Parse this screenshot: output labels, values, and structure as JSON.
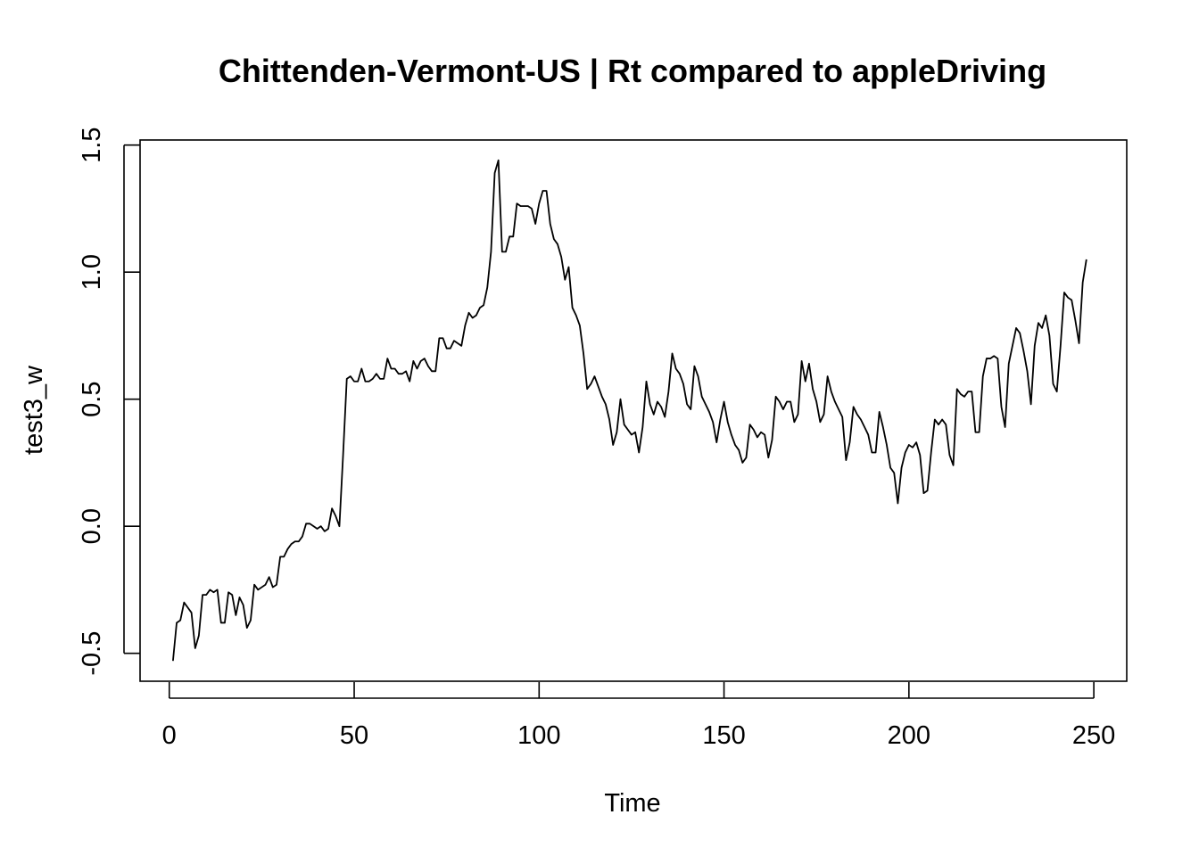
{
  "chart_data": {
    "type": "line",
    "title": "Chittenden-Vermont-US | Rt compared to appleDriving",
    "xlabel": "Time",
    "ylabel": "test3_w",
    "xlim": [
      -7.9,
      258.9
    ],
    "ylim": [
      -0.61,
      1.52
    ],
    "xticks": [
      0,
      50,
      100,
      150,
      200,
      250
    ],
    "yticks": [
      -0.5,
      0.0,
      0.5,
      1.0,
      1.5
    ],
    "xtick_labels": [
      "0",
      "50",
      "100",
      "150",
      "200",
      "250"
    ],
    "ytick_labels": [
      "-0.5",
      "0.0",
      "0.5",
      "1.0",
      "1.5"
    ],
    "grid": false,
    "line_color": "#000000",
    "series": [
      {
        "x": [
          1,
          2,
          3,
          4,
          5,
          6,
          7,
          8,
          9,
          10,
          11,
          12,
          13,
          14,
          15,
          16,
          17,
          18,
          19,
          20,
          21,
          22,
          23,
          24,
          25,
          26,
          27,
          28,
          29,
          30,
          31,
          32,
          33,
          34,
          35,
          36,
          37,
          38,
          39,
          40,
          41,
          42,
          43,
          44,
          45,
          46,
          47,
          48,
          49,
          50,
          51,
          52,
          53,
          54,
          55,
          56,
          57,
          58,
          59,
          60,
          61,
          62,
          63,
          64,
          65,
          66,
          67,
          68,
          69,
          70,
          71,
          72,
          73,
          74,
          75,
          76,
          77,
          78,
          79,
          80,
          81,
          82,
          83,
          84,
          85,
          86,
          87,
          88,
          89,
          90,
          91,
          92,
          93,
          94,
          95,
          96,
          97,
          98,
          99,
          100,
          101,
          102,
          103,
          104,
          105,
          106,
          107,
          108,
          109,
          110,
          111,
          112,
          113,
          114,
          115,
          116,
          117,
          118,
          119,
          120,
          121,
          122,
          123,
          124,
          125,
          126,
          127,
          128,
          129,
          130,
          131,
          132,
          133,
          134,
          135,
          136,
          137,
          138,
          139,
          140,
          141,
          142,
          143,
          144,
          145,
          146,
          147,
          148,
          149,
          150,
          151,
          152,
          153,
          154,
          155,
          156,
          157,
          158,
          159,
          160,
          161,
          162,
          163,
          164,
          165,
          166,
          167,
          168,
          169,
          170,
          171,
          172,
          173,
          174,
          175,
          176,
          177,
          178,
          179,
          180,
          181,
          182,
          183,
          184,
          185,
          186,
          187,
          188,
          189,
          190,
          191,
          192,
          193,
          194,
          195,
          196,
          197,
          198,
          199,
          200,
          201,
          202,
          203,
          204,
          205,
          206,
          207,
          208,
          209,
          210,
          211,
          212,
          213,
          214,
          215,
          216,
          217,
          218,
          219,
          220,
          221,
          222,
          223,
          224,
          225,
          226,
          227,
          228,
          229,
          230,
          231,
          232,
          233,
          234,
          235,
          236,
          237,
          238,
          239,
          240,
          241,
          242,
          243,
          244,
          245,
          246,
          247,
          248
        ],
        "values": [
          -0.53,
          -0.38,
          -0.37,
          -0.3,
          -0.32,
          -0.34,
          -0.48,
          -0.43,
          -0.27,
          -0.27,
          -0.25,
          -0.26,
          -0.25,
          -0.38,
          -0.38,
          -0.26,
          -0.27,
          -0.35,
          -0.28,
          -0.31,
          -0.4,
          -0.37,
          -0.23,
          -0.25,
          -0.24,
          -0.23,
          -0.2,
          -0.24,
          -0.23,
          -0.12,
          -0.12,
          -0.09,
          -0.07,
          -0.06,
          -0.06,
          -0.04,
          0.01,
          0.01,
          0.0,
          -0.01,
          0.0,
          -0.02,
          -0.01,
          0.07,
          0.04,
          0.0,
          0.28,
          0.58,
          0.59,
          0.57,
          0.57,
          0.62,
          0.57,
          0.57,
          0.58,
          0.6,
          0.58,
          0.58,
          0.66,
          0.62,
          0.62,
          0.6,
          0.6,
          0.61,
          0.57,
          0.65,
          0.62,
          0.65,
          0.66,
          0.63,
          0.61,
          0.61,
          0.74,
          0.74,
          0.7,
          0.7,
          0.73,
          0.72,
          0.71,
          0.79,
          0.84,
          0.82,
          0.83,
          0.86,
          0.87,
          0.94,
          1.08,
          1.39,
          1.44,
          1.08,
          1.08,
          1.14,
          1.14,
          1.27,
          1.26,
          1.26,
          1.26,
          1.25,
          1.19,
          1.27,
          1.32,
          1.32,
          1.19,
          1.13,
          1.11,
          1.06,
          0.97,
          1.02,
          0.86,
          0.83,
          0.79,
          0.68,
          0.54,
          0.56,
          0.59,
          0.55,
          0.51,
          0.48,
          0.42,
          0.32,
          0.37,
          0.5,
          0.4,
          0.38,
          0.36,
          0.37,
          0.29,
          0.39,
          0.57,
          0.48,
          0.44,
          0.49,
          0.47,
          0.43,
          0.53,
          0.68,
          0.62,
          0.6,
          0.56,
          0.48,
          0.46,
          0.63,
          0.59,
          0.51,
          0.48,
          0.45,
          0.41,
          0.33,
          0.42,
          0.49,
          0.41,
          0.36,
          0.32,
          0.3,
          0.25,
          0.27,
          0.4,
          0.38,
          0.35,
          0.37,
          0.36,
          0.27,
          0.34,
          0.51,
          0.49,
          0.46,
          0.49,
          0.49,
          0.41,
          0.44,
          0.65,
          0.57,
          0.64,
          0.54,
          0.49,
          0.41,
          0.44,
          0.59,
          0.53,
          0.49,
          0.46,
          0.43,
          0.26,
          0.33,
          0.47,
          0.44,
          0.42,
          0.39,
          0.36,
          0.29,
          0.29,
          0.45,
          0.39,
          0.32,
          0.23,
          0.21,
          0.09,
          0.23,
          0.29,
          0.32,
          0.31,
          0.33,
          0.28,
          0.13,
          0.14,
          0.29,
          0.42,
          0.4,
          0.42,
          0.4,
          0.28,
          0.24,
          0.54,
          0.52,
          0.51,
          0.53,
          0.53,
          0.37,
          0.37,
          0.59,
          0.66,
          0.66,
          0.67,
          0.66,
          0.47,
          0.39,
          0.64,
          0.71,
          0.78,
          0.76,
          0.69,
          0.61,
          0.48,
          0.71,
          0.8,
          0.78,
          0.83,
          0.75,
          0.56,
          0.53,
          0.71,
          0.92,
          0.9,
          0.89,
          0.81,
          0.72,
          0.96,
          1.05
        ]
      }
    ]
  }
}
